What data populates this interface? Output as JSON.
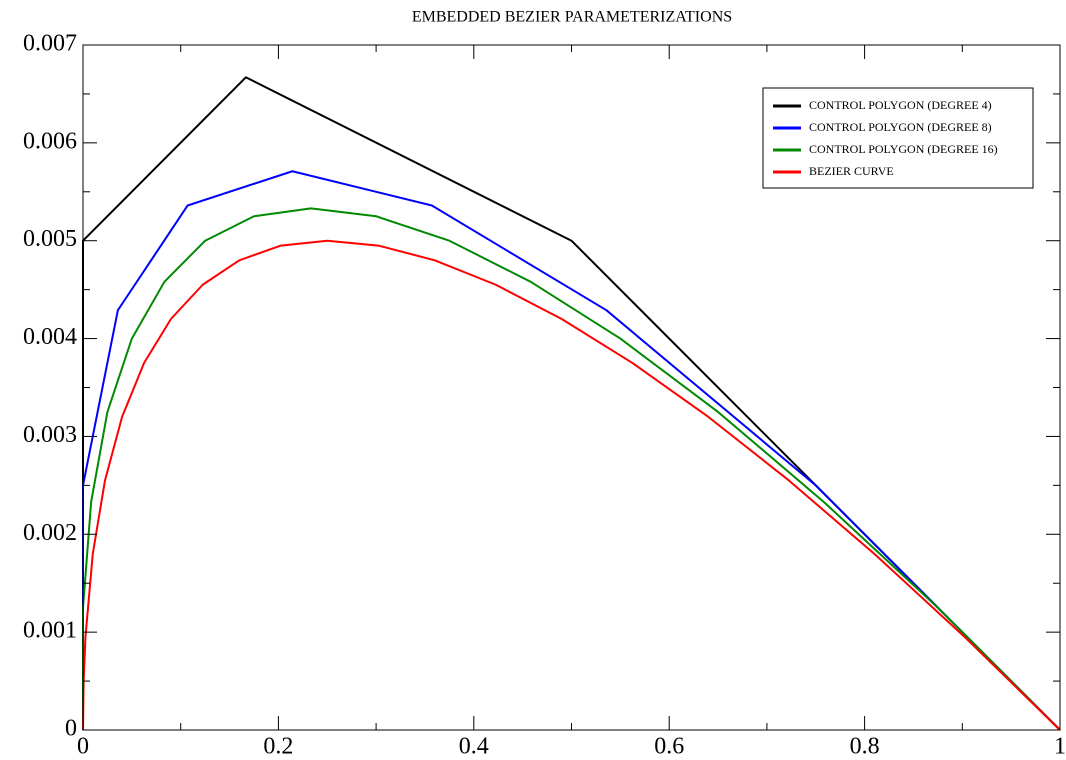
{
  "chart_data": {
    "type": "line",
    "title": "EMBEDDED BEZIER PARAMETERIZATIONS",
    "xlim": [
      0,
      1
    ],
    "ylim": [
      0,
      0.007
    ],
    "xticks": [
      0,
      0.2,
      0.4,
      0.6,
      0.8,
      1
    ],
    "yticks": [
      0,
      0.001,
      0.002,
      0.003,
      0.004,
      0.005,
      0.006,
      0.007
    ],
    "xminorticks": [
      0.1,
      0.3,
      0.5,
      0.7,
      0.9
    ],
    "yminorticks": [
      0.0005,
      0.0015,
      0.0025,
      0.0035,
      0.0045,
      0.0055,
      0.0065
    ],
    "legend": "upper right",
    "series": [
      {
        "name": "CONTROL POLYGON (DEGREE 4)",
        "color": "#000000",
        "x": [
          0,
          0,
          0.1667,
          0.5,
          1
        ],
        "values": [
          0,
          0.005,
          0.00667,
          0.005,
          0
        ]
      },
      {
        "name": "CONTROL POLYGON (DEGREE 8)",
        "color": "#0000ff",
        "x": [
          0,
          0,
          0.0357,
          0.1071,
          0.2143,
          0.3571,
          0.5357,
          0.75,
          1
        ],
        "values": [
          0,
          0.0025,
          0.00429,
          0.00536,
          0.00571,
          0.00536,
          0.00429,
          0.0025,
          0
        ]
      },
      {
        "name": "CONTROL POLYGON (DEGREE 16)",
        "color": "#008a00",
        "x": [
          0,
          0,
          0.00833,
          0.025,
          0.05,
          0.0833,
          0.125,
          0.175,
          0.2333,
          0.3,
          0.375,
          0.4583,
          0.55,
          0.65,
          0.7583,
          0.875,
          1
        ],
        "values": [
          0,
          0.00125,
          0.00233,
          0.00325,
          0.004,
          0.00458,
          0.005,
          0.00525,
          0.00533,
          0.00525,
          0.005,
          0.00458,
          0.004,
          0.00325,
          0.00233,
          0.00125,
          0
        ]
      },
      {
        "name": "BEZIER CURVE",
        "color": "#ff0000",
        "x": [
          0,
          0.000625,
          0.0025,
          0.01,
          0.0225,
          0.04,
          0.0625,
          0.09,
          0.1225,
          0.16,
          0.2025,
          0.25,
          0.3025,
          0.36,
          0.4225,
          0.49,
          0.5625,
          0.64,
          0.7225,
          0.81,
          0.9025,
          1
        ],
        "values": [
          0,
          0.0004875,
          0.00095,
          0.0018,
          0.00255,
          0.0032,
          0.00375,
          0.0042,
          0.00455,
          0.0048,
          0.00495,
          0.005,
          0.00495,
          0.0048,
          0.00455,
          0.0042,
          0.00375,
          0.0032,
          0.00255,
          0.0018,
          0.00095,
          0
        ]
      }
    ]
  }
}
